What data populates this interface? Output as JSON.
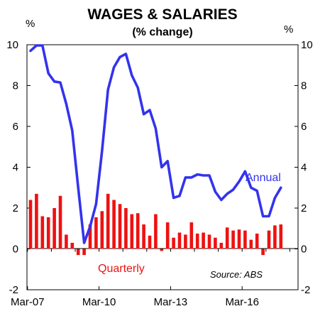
{
  "chart_data": {
    "type": "bar",
    "title": "WAGES & SALARIES",
    "subtitle": "(% change)",
    "y_unit_left": "%",
    "y_unit_right": "%",
    "ylim": [
      -2,
      10
    ],
    "y_ticks": [
      10,
      8,
      6,
      4,
      2,
      0,
      -2
    ],
    "x_tick_labels": [
      "Mar-07",
      "Mar-10",
      "Mar-13",
      "Mar-16"
    ],
    "source": "Source: ABS",
    "colors": {
      "annual": "#3333ee",
      "quarterly": "#ee1111",
      "axis": "#000000"
    },
    "series": [
      {
        "name": "Quarterly",
        "type": "bar",
        "values": [
          2.4,
          2.7,
          1.6,
          1.55,
          2.0,
          2.6,
          0.7,
          0.3,
          -0.3,
          -0.3,
          1.2,
          1.55,
          1.85,
          2.7,
          2.4,
          2.2,
          2.0,
          1.7,
          1.75,
          1.2,
          0.65,
          1.7,
          -0.1,
          1.3,
          0.55,
          0.8,
          0.7,
          1.3,
          0.75,
          0.8,
          0.7,
          0.55,
          0.3,
          1.05,
          0.9,
          0.95,
          0.9,
          0.45,
          0.75,
          -0.3,
          0.9,
          1.15,
          1.2
        ]
      },
      {
        "name": "Annual",
        "type": "line",
        "values": [
          9.7,
          10.4,
          10.3,
          8.6,
          8.2,
          8.15,
          7.1,
          5.8,
          3.0,
          0.3,
          1.1,
          2.2,
          4.8,
          7.8,
          8.9,
          9.4,
          9.55,
          8.5,
          7.9,
          6.6,
          6.8,
          5.9,
          4.0,
          4.3,
          2.5,
          2.6,
          3.5,
          3.5,
          3.65,
          3.6,
          3.6,
          2.8,
          2.4,
          2.7,
          2.9,
          3.3,
          3.8,
          3.0,
          2.85,
          1.6,
          1.6,
          2.5,
          3.0
        ]
      }
    ]
  }
}
